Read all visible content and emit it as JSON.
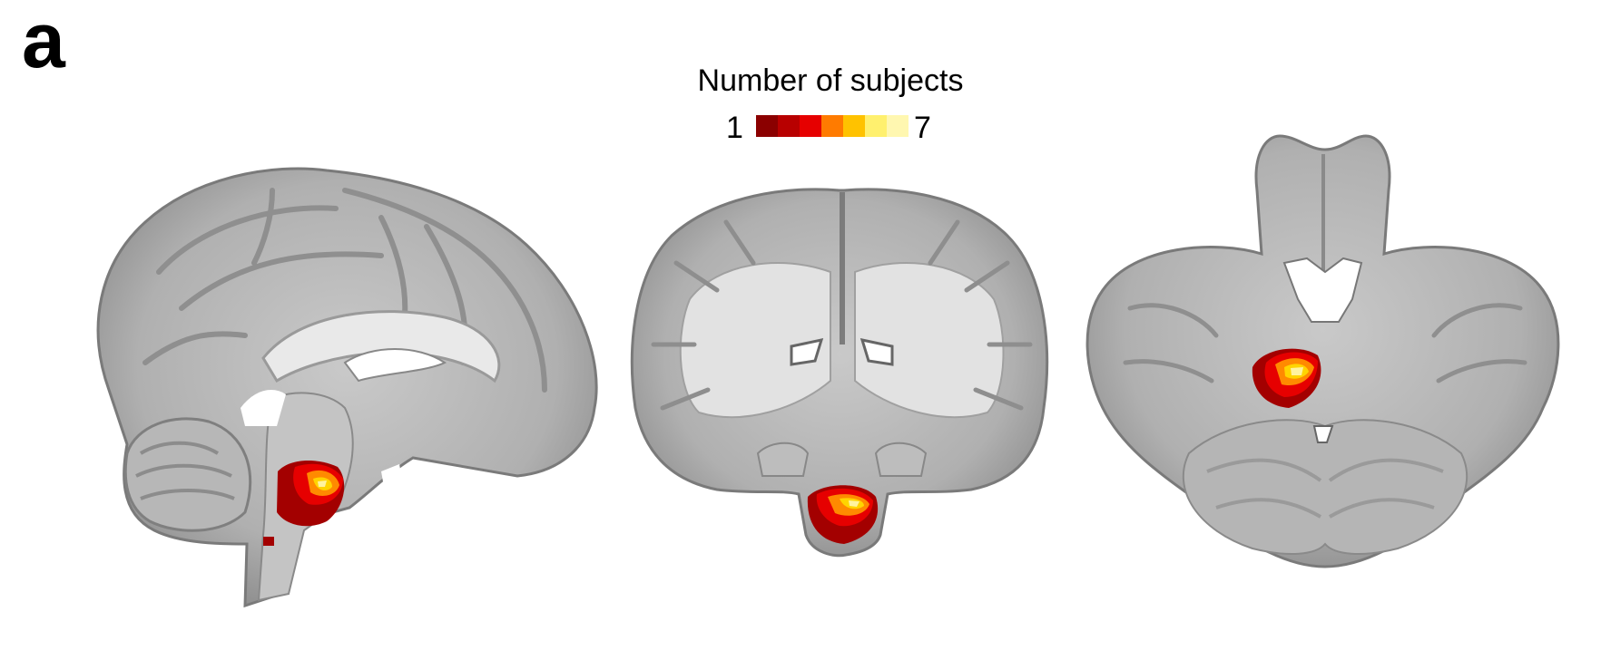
{
  "panel_label": "a",
  "legend": {
    "title": "Number of subjects",
    "min_label": "1",
    "max_label": "7",
    "colors": [
      "#8b0000",
      "#b80000",
      "#e60000",
      "#ff7b00",
      "#ffc200",
      "#fff06e",
      "#fff7b0"
    ]
  },
  "views": [
    {
      "plane": "sagittal"
    },
    {
      "plane": "coronal"
    },
    {
      "plane": "axial"
    }
  ],
  "overlay_colors": {
    "low": "#a30000",
    "mid": "#ff6a00",
    "high": "#ffd400",
    "top": "#fff3a0"
  },
  "brain_colors": {
    "gray_dark": "#6d6d6d",
    "gray_mid": "#a6a6a6",
    "gray_light": "#d4d4d4",
    "white_matter": "#e8e8e8"
  }
}
